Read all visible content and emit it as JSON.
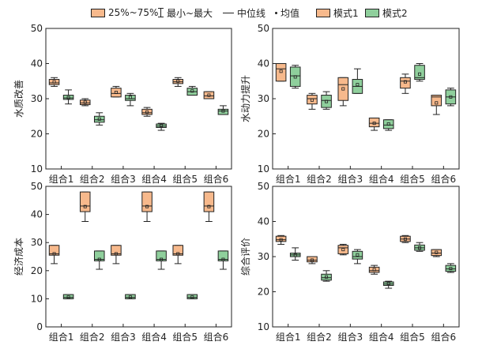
{
  "legend": {
    "box_range": "25%~75%",
    "minmax": "最小~最大",
    "median": "中位线",
    "mean": "均值",
    "mode1": "模式1",
    "mode2": "模式2"
  },
  "colors": {
    "mode1": "#f7b98c",
    "mode2": "#8fcf9c",
    "stroke": "#222222"
  },
  "chart_data": [
    {
      "type": "box",
      "ylabel": "水质改善",
      "ylim": [
        10,
        50
      ],
      "yticks": [
        10,
        20,
        30,
        40,
        50
      ],
      "categories": [
        "组合1",
        "组合2",
        "组合3",
        "组合4",
        "组合5",
        "组合6"
      ],
      "series": [
        {
          "name": "模式1",
          "boxes": [
            {
              "min": 33.5,
              "q1": 34,
              "median": 34.5,
              "q3": 35.5,
              "max": 36,
              "mean": 34.8
            },
            {
              "min": 28,
              "q1": 28.3,
              "median": 28.8,
              "q3": 29.6,
              "max": 30,
              "mean": 29
            },
            {
              "min": 30.5,
              "q1": 30.5,
              "median": 31.5,
              "q3": 33,
              "max": 33.5,
              "mean": 31.8
            },
            {
              "min": 25,
              "q1": 25.5,
              "median": 26,
              "q3": 27,
              "max": 27.5,
              "mean": 26.2
            },
            {
              "min": 33.5,
              "q1": 34.3,
              "median": 34.8,
              "q3": 35.5,
              "max": 36,
              "mean": 35
            },
            {
              "min": 30,
              "q1": 30,
              "median": 30.8,
              "q3": 32,
              "max": 32,
              "mean": 31
            }
          ]
        },
        {
          "name": "模式2",
          "boxes": [
            {
              "min": 28.5,
              "q1": 29.8,
              "median": 30.2,
              "q3": 31,
              "max": 32.5,
              "mean": 30.3
            },
            {
              "min": 22.5,
              "q1": 23.3,
              "median": 24,
              "q3": 25,
              "max": 26,
              "mean": 24.2
            },
            {
              "min": 28,
              "q1": 29.5,
              "median": 30,
              "q3": 31,
              "max": 31.5,
              "mean": 30.4
            },
            {
              "min": 21,
              "q1": 21.8,
              "median": 22.2,
              "q3": 22.8,
              "max": 23,
              "mean": 22.3
            },
            {
              "min": 31,
              "q1": 31,
              "median": 32,
              "q3": 33,
              "max": 33.5,
              "mean": 32.2
            },
            {
              "min": 25.5,
              "q1": 25.5,
              "median": 26.5,
              "q3": 27,
              "max": 28,
              "mean": 26.5
            }
          ]
        }
      ]
    },
    {
      "type": "box",
      "ylabel": "水动力提升",
      "ylim": [
        10,
        50
      ],
      "yticks": [
        10,
        20,
        30,
        40,
        50
      ],
      "categories": [
        "组合1",
        "组合2",
        "组合3",
        "组合4",
        "组合5",
        "组合6"
      ],
      "series": [
        {
          "name": "模式1",
          "boxes": [
            {
              "min": 35,
              "q1": 35,
              "median": 38.5,
              "q3": 40,
              "max": 40,
              "mean": 37.8
            },
            {
              "min": 27,
              "q1": 28.5,
              "median": 30,
              "q3": 31,
              "max": 31.5,
              "mean": 29.6
            },
            {
              "min": 28,
              "q1": 29.5,
              "median": 34,
              "q3": 36,
              "max": 36,
              "mean": 32.8
            },
            {
              "min": 21,
              "q1": 22,
              "median": 23,
              "q3": 24.5,
              "max": 24.5,
              "mean": 23
            },
            {
              "min": 31.5,
              "q1": 33,
              "median": 35,
              "q3": 36,
              "max": 37,
              "mean": 34.8
            },
            {
              "min": 25.5,
              "q1": 28,
              "median": 30.5,
              "q3": 31,
              "max": 31,
              "mean": 28.8
            }
          ]
        },
        {
          "name": "模式2",
          "boxes": [
            {
              "min": 33,
              "q1": 33.5,
              "median": 36.5,
              "q3": 39,
              "max": 39.5,
              "mean": 36.2
            },
            {
              "min": 27,
              "q1": 27.5,
              "median": 29.5,
              "q3": 31,
              "max": 32,
              "mean": 29.2
            },
            {
              "min": 31.5,
              "q1": 31.5,
              "median": 33.5,
              "q3": 35.5,
              "max": 38.5,
              "mean": 34
            },
            {
              "min": 21,
              "q1": 21.5,
              "median": 22.5,
              "q3": 24,
              "max": 24,
              "mean": 22.8
            },
            {
              "min": 35,
              "q1": 35.5,
              "median": 36,
              "q3": 39.5,
              "max": 40,
              "mean": 37
            },
            {
              "min": 28,
              "q1": 28.5,
              "median": 30.5,
              "q3": 32.5,
              "max": 33,
              "mean": 30.5
            }
          ]
        }
      ]
    },
    {
      "type": "box",
      "ylabel": "经济成本",
      "ylim": [
        0,
        50
      ],
      "yticks": [
        0,
        10,
        20,
        30,
        40,
        50
      ],
      "categories": [
        "组合1",
        "组合2",
        "组合3",
        "组合4",
        "组合5",
        "组合6"
      ],
      "series": [
        {
          "name": "模式1",
          "boxes": [
            {
              "min": 22.5,
              "q1": 25.5,
              "median": 26,
              "q3": 29,
              "max": 29,
              "mean": 26
            },
            {
              "min": 37.5,
              "q1": 41,
              "median": 43,
              "q3": 48,
              "max": 48,
              "mean": 42.8
            },
            {
              "min": 22.5,
              "q1": 25.5,
              "median": 26,
              "q3": 29,
              "max": 29,
              "mean": 26
            },
            {
              "min": 37.5,
              "q1": 41,
              "median": 43,
              "q3": 48,
              "max": 48,
              "mean": 42.8
            },
            {
              "min": 22.5,
              "q1": 25.5,
              "median": 26,
              "q3": 29,
              "max": 29,
              "mean": 26
            },
            {
              "min": 37.5,
              "q1": 41,
              "median": 43,
              "q3": 48,
              "max": 48,
              "mean": 42.8
            }
          ]
        },
        {
          "name": "模式2",
          "boxes": [
            {
              "min": 10,
              "q1": 10,
              "median": 10.5,
              "q3": 11.5,
              "max": 11.5,
              "mean": 10.6
            },
            {
              "min": 20.5,
              "q1": 23.5,
              "median": 24,
              "q3": 27,
              "max": 27,
              "mean": 24
            },
            {
              "min": 10,
              "q1": 10,
              "median": 10.5,
              "q3": 11.5,
              "max": 11.5,
              "mean": 10.6
            },
            {
              "min": 20.5,
              "q1": 23.5,
              "median": 24,
              "q3": 27,
              "max": 27,
              "mean": 24
            },
            {
              "min": 10,
              "q1": 10,
              "median": 10.5,
              "q3": 11.5,
              "max": 11.5,
              "mean": 10.6
            },
            {
              "min": 20.5,
              "q1": 23.5,
              "median": 24,
              "q3": 27,
              "max": 27,
              "mean": 24
            }
          ]
        }
      ]
    },
    {
      "type": "box",
      "ylabel": "综合评价",
      "ylim": [
        10,
        50
      ],
      "yticks": [
        10,
        20,
        30,
        40,
        50
      ],
      "categories": [
        "组合1",
        "组合2",
        "组合3",
        "组合4",
        "组合5",
        "组合6"
      ],
      "series": [
        {
          "name": "模式1",
          "boxes": [
            {
              "min": 33.5,
              "q1": 34.3,
              "median": 34.8,
              "q3": 35.8,
              "max": 36,
              "mean": 34.8
            },
            {
              "min": 28,
              "q1": 28.5,
              "median": 29,
              "q3": 30,
              "max": 30,
              "mean": 29
            },
            {
              "min": 30.5,
              "q1": 30.8,
              "median": 32.5,
              "q3": 33.2,
              "max": 33.5,
              "mean": 32
            },
            {
              "min": 25,
              "q1": 25.5,
              "median": 26,
              "q3": 27,
              "max": 27.5,
              "mean": 26.3
            },
            {
              "min": 34,
              "q1": 34.3,
              "median": 35,
              "q3": 35.8,
              "max": 36,
              "mean": 35
            },
            {
              "min": 30,
              "q1": 30.3,
              "median": 31,
              "q3": 32,
              "max": 32,
              "mean": 31.2
            }
          ]
        },
        {
          "name": "模式2",
          "boxes": [
            {
              "min": 29,
              "q1": 30,
              "median": 30.5,
              "q3": 31,
              "max": 32.5,
              "mean": 30.4
            },
            {
              "min": 23,
              "q1": 23.3,
              "median": 24,
              "q3": 25,
              "max": 26,
              "mean": 24.2
            },
            {
              "min": 28,
              "q1": 29.3,
              "median": 30,
              "q3": 31.5,
              "max": 32,
              "mean": 30.5
            },
            {
              "min": 21,
              "q1": 21.8,
              "median": 22.2,
              "q3": 22.8,
              "max": 23,
              "mean": 22.3
            },
            {
              "min": 31.5,
              "q1": 31.8,
              "median": 32.5,
              "q3": 33.3,
              "max": 34,
              "mean": 32.5
            },
            {
              "min": 25.5,
              "q1": 25.8,
              "median": 26.5,
              "q3": 27.5,
              "max": 28,
              "mean": 26.6
            }
          ]
        }
      ]
    }
  ]
}
